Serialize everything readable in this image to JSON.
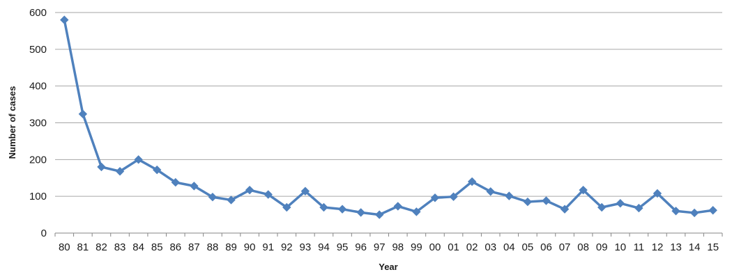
{
  "chart_data": {
    "type": "line",
    "title": "",
    "xlabel": "Year",
    "ylabel": "Number of cases",
    "ylim": [
      0,
      600
    ],
    "yticks": [
      0,
      100,
      200,
      300,
      400,
      500,
      600
    ],
    "grid": true,
    "legend": "none",
    "categories": [
      "80",
      "81",
      "82",
      "83",
      "84",
      "85",
      "86",
      "87",
      "88",
      "89",
      "90",
      "91",
      "92",
      "93",
      "94",
      "95",
      "96",
      "97",
      "98",
      "99",
      "00",
      "01",
      "02",
      "03",
      "04",
      "05",
      "06",
      "07",
      "08",
      "09",
      "10",
      "11",
      "12",
      "13",
      "14",
      "15"
    ],
    "series": [
      {
        "values": [
          580,
          324,
          180,
          168,
          200,
          172,
          138,
          128,
          98,
          90,
          117,
          105,
          70,
          114,
          70,
          65,
          56,
          50,
          73,
          58,
          96,
          99,
          140,
          113,
          101,
          85,
          88,
          65,
          117,
          70,
          81,
          68,
          108,
          60,
          55,
          62
        ],
        "color": "#4f81bd",
        "marker": "diamond"
      }
    ]
  }
}
